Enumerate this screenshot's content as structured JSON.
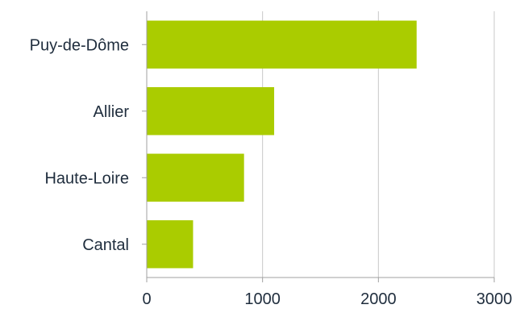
{
  "chart_data": {
    "type": "bar",
    "orientation": "horizontal",
    "categories": [
      "Puy-de-Dôme",
      "Allier",
      "Haute-Loire",
      "Cantal"
    ],
    "values": [
      2330,
      1100,
      840,
      400
    ],
    "title": "",
    "xlabel": "",
    "ylabel": "",
    "xlim": [
      0,
      3000
    ],
    "xticks": [
      "0",
      "1000",
      "2000",
      "3000"
    ],
    "grid": "vertical",
    "legend": "none",
    "bar_color": "#aacc00",
    "grid_color": "#c8c8c8",
    "axis_color": "#a0a0a0",
    "text_color": "#1f2d3d"
  }
}
